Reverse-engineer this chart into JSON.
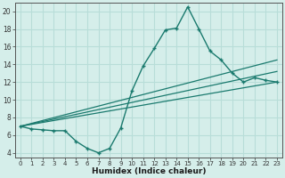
{
  "xlabel": "Humidex (Indice chaleur)",
  "background_color": "#d5eeea",
  "grid_color": "#b8ddd8",
  "line_color": "#1a7a6e",
  "marker_color": "#1a7a6e",
  "xlim": [
    -0.5,
    23.5
  ],
  "ylim": [
    3.5,
    21.0
  ],
  "xticks": [
    0,
    1,
    2,
    3,
    4,
    5,
    6,
    7,
    8,
    9,
    10,
    11,
    12,
    13,
    14,
    15,
    16,
    17,
    18,
    19,
    20,
    21,
    22,
    23
  ],
  "yticks": [
    4,
    6,
    8,
    10,
    12,
    14,
    16,
    18,
    20
  ],
  "line1_x": [
    0,
    1,
    2,
    3,
    4,
    5,
    6,
    7,
    8,
    9,
    10,
    11,
    12,
    13,
    14,
    15,
    16,
    17,
    18,
    19,
    20,
    21,
    22,
    23
  ],
  "line1_y": [
    7.0,
    6.7,
    6.6,
    6.5,
    6.5,
    5.3,
    4.5,
    4.0,
    4.5,
    6.8,
    11.0,
    13.8,
    15.8,
    17.9,
    18.1,
    20.5,
    18.0,
    15.5,
    14.5,
    13.0,
    12.0,
    12.5,
    12.2,
    12.0
  ],
  "line2_x": [
    0,
    23
  ],
  "line2_y": [
    7.0,
    12.0
  ],
  "line3_x": [
    0,
    23
  ],
  "line3_y": [
    7.0,
    13.2
  ],
  "line4_x": [
    0,
    23
  ],
  "line4_y": [
    7.0,
    14.5
  ]
}
